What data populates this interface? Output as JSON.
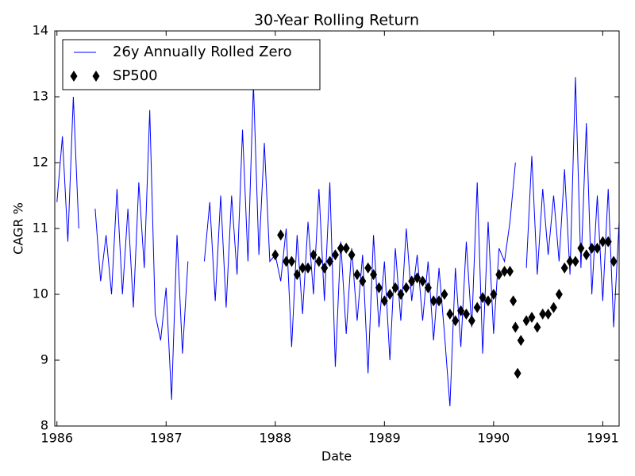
{
  "chart_data": {
    "type": "line",
    "title": "30-Year Rolling Return",
    "xlabel": "Date",
    "ylabel": "CAGR %",
    "xlim": [
      1985.98,
      1991.15
    ],
    "xticks": [
      1986,
      1987,
      1988,
      1989,
      1990,
      1991
    ],
    "ylim": [
      8,
      14
    ],
    "yticks": [
      8,
      9,
      10,
      11,
      12,
      13,
      14
    ],
    "legend": "upper left",
    "series": [
      {
        "name": "26y Annually Rolled Zero",
        "color": "#0000ff",
        "style": "line",
        "x": [
          1986.0,
          1986.05,
          1986.1,
          1986.15,
          1986.2,
          1986.25,
          1986.3,
          1986.35,
          1986.4,
          1986.45,
          1986.5,
          1986.55,
          1986.6,
          1986.65,
          1986.7,
          1986.75,
          1986.8,
          1986.85,
          1986.9,
          1986.95,
          1987.0,
          1987.05,
          1987.1,
          1987.15,
          1987.2,
          1987.25,
          1987.3,
          1987.35,
          1987.4,
          1987.45,
          1987.5,
          1987.55,
          1987.6,
          1987.65,
          1987.7,
          1987.75,
          1987.8,
          1987.85,
          1987.9,
          1987.95,
          1988.0,
          1988.05,
          1988.1,
          1988.15,
          1988.2,
          1988.25,
          1988.3,
          1988.35,
          1988.4,
          1988.45,
          1988.5,
          1988.55,
          1988.6,
          1988.65,
          1988.7,
          1988.75,
          1988.8,
          1988.85,
          1988.9,
          1988.95,
          1989.0,
          1989.05,
          1989.1,
          1989.15,
          1989.2,
          1989.25,
          1989.3,
          1989.35,
          1989.4,
          1989.45,
          1989.5,
          1989.55,
          1989.6,
          1989.65,
          1989.7,
          1989.75,
          1989.8,
          1989.85,
          1989.9,
          1989.95,
          1990.0,
          1990.05,
          1990.1,
          1990.15,
          1990.2,
          1990.25,
          1990.3,
          1990.35,
          1990.4,
          1990.45,
          1990.5,
          1990.55,
          1990.6,
          1990.65,
          1990.7,
          1990.75,
          1990.8,
          1990.85,
          1990.9,
          1990.95,
          1991.0,
          1991.05,
          1991.1,
          1991.15
        ],
        "values": [
          11.4,
          12.4,
          10.8,
          13.0,
          11.0,
          null,
          null,
          11.3,
          10.2,
          10.9,
          10.0,
          11.6,
          10.0,
          11.3,
          9.8,
          11.7,
          10.4,
          12.8,
          9.7,
          9.3,
          10.1,
          8.4,
          10.9,
          9.1,
          10.5,
          null,
          null,
          10.5,
          11.4,
          9.9,
          11.5,
          9.8,
          11.5,
          10.3,
          12.5,
          10.5,
          13.2,
          10.6,
          12.3,
          10.5,
          10.6,
          10.2,
          11.0,
          9.2,
          10.9,
          9.7,
          11.1,
          10.0,
          11.6,
          9.9,
          11.7,
          8.9,
          10.8,
          9.4,
          10.7,
          9.6,
          10.6,
          8.8,
          10.9,
          9.5,
          10.5,
          9.0,
          10.7,
          9.6,
          11.0,
          9.9,
          10.6,
          9.6,
          10.5,
          9.3,
          10.4,
          9.4,
          8.3,
          10.4,
          9.2,
          10.8,
          9.5,
          11.7,
          9.1,
          11.1,
          9.4,
          10.7,
          10.5,
          11.1,
          12.0,
          null,
          10.4,
          12.1,
          10.3,
          11.6,
          10.6,
          11.5,
          10.5,
          11.9,
          10.3,
          13.3,
          10.4,
          12.6,
          10.0,
          11.5,
          9.9,
          11.6,
          9.5,
          11.1
        ]
      },
      {
        "name": "SP500",
        "color": "#000000",
        "style": "marker",
        "x": [
          1988.0,
          1988.05,
          1988.1,
          1988.15,
          1988.2,
          1988.25,
          1988.3,
          1988.35,
          1988.4,
          1988.45,
          1988.5,
          1988.55,
          1988.6,
          1988.65,
          1988.7,
          1988.75,
          1988.8,
          1988.85,
          1988.9,
          1988.95,
          1989.0,
          1989.05,
          1989.1,
          1989.15,
          1989.2,
          1989.25,
          1989.3,
          1989.35,
          1989.4,
          1989.45,
          1989.5,
          1989.55,
          1989.6,
          1989.65,
          1989.7,
          1989.75,
          1989.8,
          1989.85,
          1989.9,
          1989.95,
          1990.0,
          1990.05,
          1990.1,
          1990.15,
          1990.18,
          1990.2,
          1990.22,
          1990.25,
          1990.3,
          1990.35,
          1990.4,
          1990.45,
          1990.5,
          1990.55,
          1990.6,
          1990.65,
          1990.7,
          1990.75,
          1990.8,
          1990.85,
          1990.9,
          1990.95,
          1991.0,
          1991.05,
          1991.1
        ],
        "values": [
          10.6,
          10.9,
          10.5,
          10.5,
          10.3,
          10.4,
          10.4,
          10.6,
          10.5,
          10.4,
          10.5,
          10.6,
          10.7,
          10.7,
          10.6,
          10.3,
          10.2,
          10.4,
          10.3,
          10.1,
          9.9,
          10.0,
          10.1,
          10.0,
          10.1,
          10.2,
          10.25,
          10.2,
          10.1,
          9.9,
          9.9,
          10.0,
          9.7,
          9.6,
          9.75,
          9.7,
          9.6,
          9.8,
          9.95,
          9.9,
          10.0,
          10.3,
          10.35,
          10.35,
          9.9,
          9.5,
          8.8,
          9.3,
          9.6,
          9.65,
          9.5,
          9.7,
          9.7,
          9.8,
          10.0,
          10.4,
          10.5,
          10.5,
          10.7,
          10.6,
          10.7,
          10.7,
          10.8,
          10.8,
          10.5
        ]
      }
    ]
  }
}
